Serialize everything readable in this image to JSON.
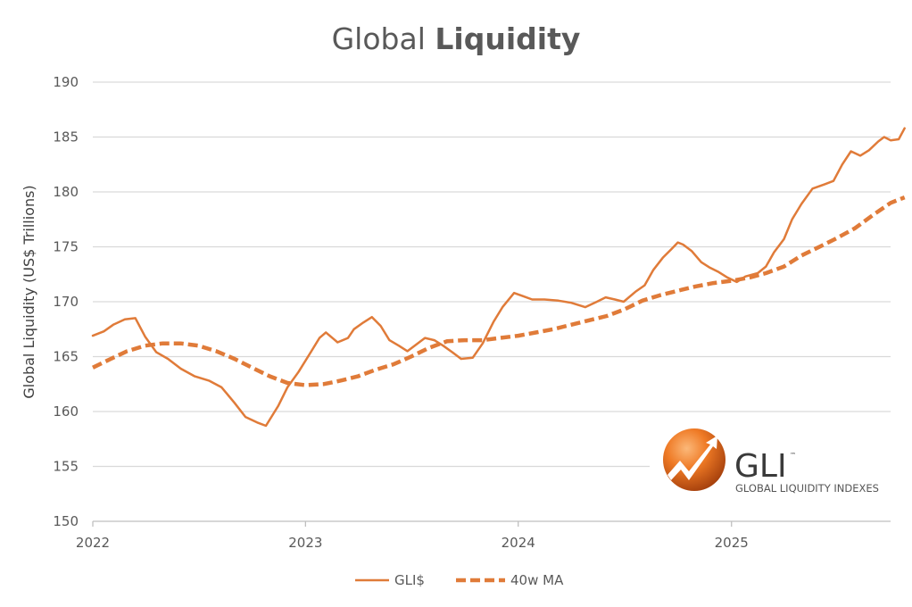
{
  "title": {
    "regular": "Global ",
    "bold": "Liquidity"
  },
  "logo": {
    "name": "GLI",
    "trademark": "™",
    "subtitle": "GLOBAL LIQUIDITY INDEXES"
  },
  "colors": {
    "series": "#E07B39",
    "grid": "#d9d9d9",
    "text": "#595959"
  },
  "chart_data": {
    "type": "line",
    "title": "Global Liquidity",
    "xlabel": "",
    "ylabel": "Global Liquidity (US$ Trillions)",
    "ylim": [
      150,
      190
    ],
    "yticks": [
      "150",
      "155",
      "160",
      "165",
      "170",
      "175",
      "180",
      "185",
      "190"
    ],
    "xlim": [
      "2022-01-01",
      "2025-10-01"
    ],
    "xticks": [
      {
        "date": "2022-01-01",
        "label": "2022"
      },
      {
        "date": "2023-01-01",
        "label": "2023"
      },
      {
        "date": "2024-01-01",
        "label": "2024"
      },
      {
        "date": "2025-01-01",
        "label": "2025"
      }
    ],
    "grid": true,
    "legend_position": "bottom",
    "series": [
      {
        "name": "GLI$",
        "style": "solid",
        "points": [
          [
            "2022-01-01",
            166.9
          ],
          [
            "2022-01-20",
            167.3
          ],
          [
            "2022-02-05",
            167.9
          ],
          [
            "2022-02-25",
            168.4
          ],
          [
            "2022-03-15",
            168.5
          ],
          [
            "2022-04-01",
            166.8
          ],
          [
            "2022-04-20",
            165.4
          ],
          [
            "2022-05-10",
            164.8
          ],
          [
            "2022-06-01",
            163.9
          ],
          [
            "2022-06-25",
            163.2
          ],
          [
            "2022-07-20",
            162.8
          ],
          [
            "2022-08-10",
            162.2
          ],
          [
            "2022-09-01",
            160.8
          ],
          [
            "2022-09-20",
            159.5
          ],
          [
            "2022-10-10",
            159.0
          ],
          [
            "2022-10-25",
            158.7
          ],
          [
            "2022-11-15",
            160.5
          ],
          [
            "2022-12-01",
            162.2
          ],
          [
            "2022-12-20",
            163.6
          ],
          [
            "2023-01-10",
            165.4
          ],
          [
            "2023-01-25",
            166.7
          ],
          [
            "2023-02-05",
            167.2
          ],
          [
            "2023-02-25",
            166.3
          ],
          [
            "2023-03-15",
            166.7
          ],
          [
            "2023-03-25",
            167.5
          ],
          [
            "2023-04-10",
            168.1
          ],
          [
            "2023-04-25",
            168.6
          ],
          [
            "2023-05-10",
            167.8
          ],
          [
            "2023-05-25",
            166.5
          ],
          [
            "2023-06-10",
            166.0
          ],
          [
            "2023-06-25",
            165.5
          ],
          [
            "2023-07-10",
            166.1
          ],
          [
            "2023-07-25",
            166.7
          ],
          [
            "2023-08-10",
            166.5
          ],
          [
            "2023-08-25",
            166.0
          ],
          [
            "2023-09-10",
            165.4
          ],
          [
            "2023-09-25",
            164.8
          ],
          [
            "2023-10-15",
            164.9
          ],
          [
            "2023-11-01",
            166.2
          ],
          [
            "2023-11-20",
            168.2
          ],
          [
            "2023-12-05",
            169.5
          ],
          [
            "2023-12-25",
            170.8
          ],
          [
            "2024-01-10",
            170.5
          ],
          [
            "2024-01-25",
            170.2
          ],
          [
            "2024-02-15",
            170.2
          ],
          [
            "2024-03-10",
            170.1
          ],
          [
            "2024-04-01",
            169.9
          ],
          [
            "2024-04-25",
            169.5
          ],
          [
            "2024-05-15",
            170.0
          ],
          [
            "2024-05-30",
            170.4
          ],
          [
            "2024-06-15",
            170.2
          ],
          [
            "2024-06-30",
            170.0
          ],
          [
            "2024-07-20",
            170.9
          ],
          [
            "2024-08-05",
            171.5
          ],
          [
            "2024-08-20",
            172.9
          ],
          [
            "2024-09-05",
            174.0
          ],
          [
            "2024-09-20",
            174.8
          ],
          [
            "2024-10-01",
            175.4
          ],
          [
            "2024-10-10",
            175.2
          ],
          [
            "2024-10-25",
            174.6
          ],
          [
            "2024-11-10",
            173.6
          ],
          [
            "2024-11-25",
            173.1
          ],
          [
            "2024-12-10",
            172.7
          ],
          [
            "2024-12-25",
            172.2
          ],
          [
            "2025-01-10",
            171.8
          ],
          [
            "2025-01-25",
            172.3
          ],
          [
            "2025-02-15",
            172.6
          ],
          [
            "2025-03-01",
            173.2
          ],
          [
            "2025-03-15",
            174.5
          ],
          [
            "2025-04-01",
            175.7
          ],
          [
            "2025-04-15",
            177.5
          ],
          [
            "2025-05-01",
            178.9
          ],
          [
            "2025-05-20",
            180.3
          ],
          [
            "2025-06-10",
            180.7
          ],
          [
            "2025-06-25",
            181.0
          ],
          [
            "2025-07-10",
            182.5
          ],
          [
            "2025-07-25",
            183.7
          ],
          [
            "2025-08-10",
            183.3
          ],
          [
            "2025-08-25",
            183.8
          ],
          [
            "2025-09-10",
            184.6
          ],
          [
            "2025-09-20",
            185.0
          ],
          [
            "2025-10-01",
            184.7
          ],
          [
            "2025-10-15",
            184.8
          ],
          [
            "2025-10-25",
            185.8
          ]
        ]
      },
      {
        "name": "40w MA",
        "style": "dashed",
        "points": [
          [
            "2022-01-01",
            164.0
          ],
          [
            "2022-02-01",
            164.8
          ],
          [
            "2022-03-01",
            165.5
          ],
          [
            "2022-04-01",
            166.0
          ],
          [
            "2022-05-01",
            166.2
          ],
          [
            "2022-06-01",
            166.2
          ],
          [
            "2022-07-01",
            166.0
          ],
          [
            "2022-08-01",
            165.5
          ],
          [
            "2022-09-01",
            164.8
          ],
          [
            "2022-10-01",
            164.0
          ],
          [
            "2022-11-01",
            163.2
          ],
          [
            "2022-12-01",
            162.6
          ],
          [
            "2023-01-01",
            162.4
          ],
          [
            "2023-02-01",
            162.5
          ],
          [
            "2023-03-01",
            162.8
          ],
          [
            "2023-04-01",
            163.2
          ],
          [
            "2023-05-01",
            163.8
          ],
          [
            "2023-06-01",
            164.3
          ],
          [
            "2023-07-01",
            165.0
          ],
          [
            "2023-08-01",
            165.8
          ],
          [
            "2023-09-01",
            166.4
          ],
          [
            "2023-10-01",
            166.5
          ],
          [
            "2023-11-01",
            166.5
          ],
          [
            "2023-12-01",
            166.7
          ],
          [
            "2024-01-01",
            166.9
          ],
          [
            "2024-02-01",
            167.2
          ],
          [
            "2024-03-01",
            167.5
          ],
          [
            "2024-04-01",
            167.9
          ],
          [
            "2024-05-01",
            168.3
          ],
          [
            "2024-06-01",
            168.7
          ],
          [
            "2024-07-01",
            169.3
          ],
          [
            "2024-08-01",
            170.1
          ],
          [
            "2024-09-01",
            170.6
          ],
          [
            "2024-10-01",
            171.0
          ],
          [
            "2024-11-01",
            171.4
          ],
          [
            "2024-12-01",
            171.7
          ],
          [
            "2025-01-01",
            171.9
          ],
          [
            "2025-02-01",
            172.2
          ],
          [
            "2025-03-01",
            172.6
          ],
          [
            "2025-04-01",
            173.2
          ],
          [
            "2025-05-01",
            174.2
          ],
          [
            "2025-06-01",
            175.0
          ],
          [
            "2025-07-01",
            175.8
          ],
          [
            "2025-08-01",
            176.7
          ],
          [
            "2025-09-01",
            177.9
          ],
          [
            "2025-10-01",
            179.0
          ],
          [
            "2025-10-25",
            179.5
          ]
        ]
      }
    ]
  }
}
